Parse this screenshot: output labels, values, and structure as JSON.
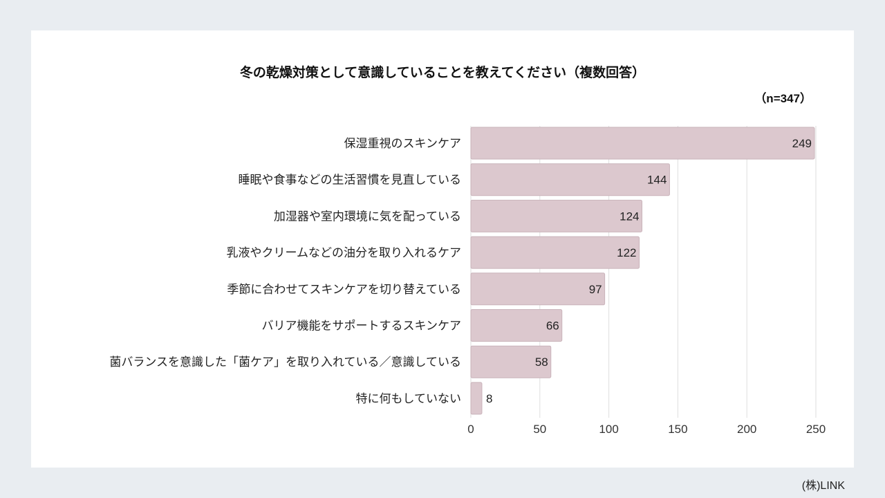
{
  "chart_data": {
    "type": "bar",
    "orientation": "horizontal",
    "title": "冬の乾燥対策として意識していることを教えてください（複数回答）",
    "subtitle": "（n=347）",
    "categories": [
      "保湿重視のスキンケア",
      "睡眠や食事などの生活習慣を見直している",
      "加湿器や室内環境に気を配っている",
      "乳液やクリームなどの油分を取り入れるケア",
      "季節に合わせてスキンケアを切り替えている",
      "バリア機能をサポートするスキンケア",
      "菌バランスを意識した「菌ケア」を取り入れている／意識している",
      "特に何もしていない"
    ],
    "values": [
      249,
      144,
      124,
      122,
      97,
      66,
      58,
      8
    ],
    "xlim": [
      0,
      250
    ],
    "xticks": [
      "0",
      "50",
      "100",
      "150",
      "200",
      "250"
    ],
    "grid": true,
    "bar_color": "#dcc8ce",
    "bar_border_color": "#c9b3ba"
  },
  "footer": {
    "credit": "(株)LINK"
  }
}
